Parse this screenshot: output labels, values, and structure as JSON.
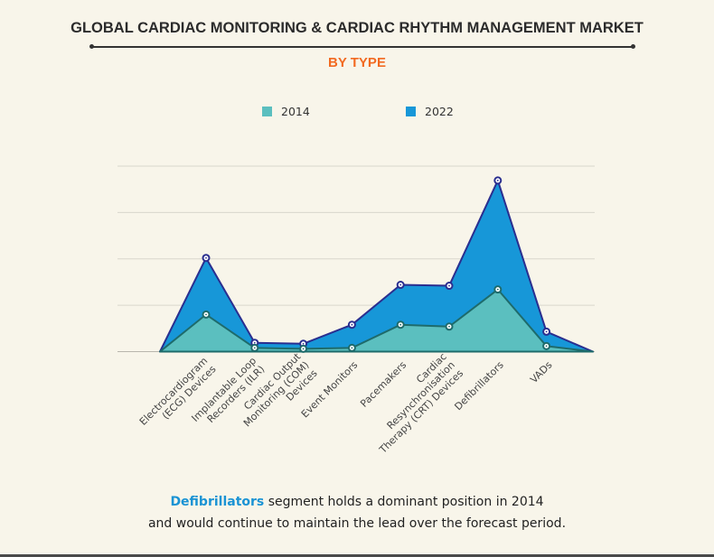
{
  "header": {
    "title": "GLOBAL CARDIAC MONITORING & CARDIAC RHYTHM MANAGEMENT MARKET",
    "subtitle": "BY TYPE"
  },
  "colors": {
    "series_2014": "#5bbfbf",
    "series_2014_line": "#1e6b6b",
    "series_2022": "#1797d8",
    "series_2022_line": "#2a2e8f",
    "subtitle": "#f26a21",
    "highlight": "#1a93d4"
  },
  "chart_data": {
    "type": "area",
    "title": "GLOBAL CARDIAC MONITORING & CARDIAC RHYTHM MANAGEMENT MARKET",
    "subtitle": "BY TYPE",
    "xlabel": "",
    "ylabel": "",
    "grid": true,
    "legend": "top-center",
    "ylim": [
      0,
      4
    ],
    "categories": [
      [
        "Electrocardiogram",
        "(ECG) Devices"
      ],
      [
        "Implantable Loop",
        "Recorders (ILR)"
      ],
      [
        "Cardiac Output",
        "Monitoring (COM)",
        "Devices"
      ],
      [
        "Event Monitors"
      ],
      [
        "Pacemakers"
      ],
      [
        "Cardiac",
        "Resynchronisation",
        "Therapy (CRT) Devices"
      ],
      [
        "Defibrillators"
      ],
      [
        "VADs"
      ]
    ],
    "series": [
      {
        "name": "2022",
        "values": [
          2.02,
          0.19,
          0.17,
          0.58,
          1.44,
          1.42,
          3.69,
          0.43
        ]
      },
      {
        "name": "2014",
        "values": [
          0.8,
          0.08,
          0.06,
          0.08,
          0.58,
          0.54,
          1.34,
          0.12
        ]
      }
    ]
  },
  "note": {
    "highlight": "Defibrillators",
    "line1_rest": " segment holds a dominant position in 2014",
    "line2": "and would continue to maintain the lead over the forecast period."
  }
}
